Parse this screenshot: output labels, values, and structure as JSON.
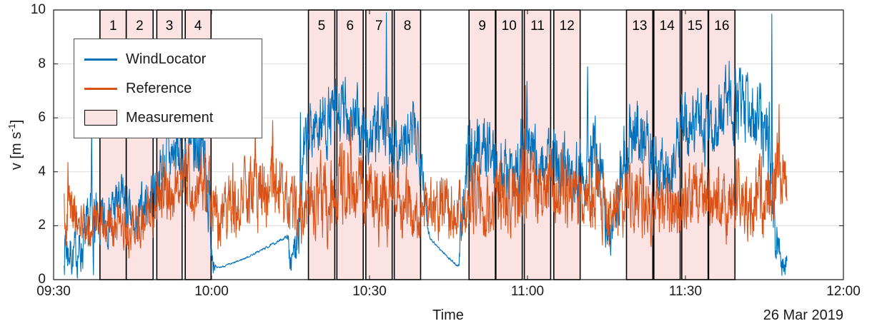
{
  "figure": {
    "ylabel_pre": "v [m s",
    "ylabel_sup": "-1",
    "ylabel_post": "]",
    "xlabel": "Time",
    "date_label": "26 Mar 2019"
  },
  "chart_data": {
    "type": "line",
    "title": "",
    "xlabel": "Time",
    "ylabel": "v [m s^-1]",
    "grid": true,
    "x_axis": {
      "start_label": "09:30",
      "end_label": "12:00",
      "tick_labels": [
        "09:30",
        "10:00",
        "10:30",
        "11:00",
        "11:30",
        "12:00"
      ],
      "tick_minutes": [
        0,
        30,
        60,
        90,
        120,
        150
      ],
      "range_minutes": [
        0,
        150
      ],
      "date": "26 Mar 2019"
    },
    "y_axis": {
      "ticks": [
        0,
        2,
        4,
        6,
        8,
        10
      ],
      "lim": [
        0,
        10
      ],
      "label": "v [m s^-1]"
    },
    "legend": {
      "position": "top-left",
      "entries": [
        {
          "label": "WindLocator",
          "type": "line",
          "color": "#0072BD"
        },
        {
          "label": "Reference",
          "type": "line",
          "color": "#D95319"
        },
        {
          "label": "Measurement",
          "type": "patch",
          "color": "#FBE3E3",
          "border": "#000000"
        }
      ]
    },
    "colors": {
      "windlocator": "#0072BD",
      "reference": "#D95319",
      "measurement_fill": "#FBE3E3",
      "measurement_border": "#000000",
      "grid": "#DCDCDC",
      "axis": "#1a1a1a"
    },
    "measurements": [
      {
        "id": "1",
        "start_min": 8.8,
        "end_min": 13.8
      },
      {
        "id": "2",
        "start_min": 13.8,
        "end_min": 18.9
      },
      {
        "id": "3",
        "start_min": 19.6,
        "end_min": 24.4
      },
      {
        "id": "4",
        "start_min": 25.0,
        "end_min": 29.9
      },
      {
        "id": "5",
        "start_min": 48.4,
        "end_min": 53.4
      },
      {
        "id": "6",
        "start_min": 53.8,
        "end_min": 58.8
      },
      {
        "id": "7",
        "start_min": 59.3,
        "end_min": 64.3
      },
      {
        "id": "8",
        "start_min": 64.7,
        "end_min": 69.7
      },
      {
        "id": "9",
        "start_min": 78.9,
        "end_min": 83.9
      },
      {
        "id": "10",
        "start_min": 84.0,
        "end_min": 89.0
      },
      {
        "id": "11",
        "start_min": 89.4,
        "end_min": 94.4
      },
      {
        "id": "12",
        "start_min": 95.0,
        "end_min": 100.0
      },
      {
        "id": "13",
        "start_min": 108.8,
        "end_min": 113.8
      },
      {
        "id": "14",
        "start_min": 114.0,
        "end_min": 119.0
      },
      {
        "id": "15",
        "start_min": 119.3,
        "end_min": 124.3
      },
      {
        "id": "16",
        "start_min": 124.4,
        "end_min": 129.4
      }
    ],
    "series": [
      {
        "name": "WindLocator",
        "color": "#0072BD",
        "anchors": [
          [
            2,
            1.3,
            0.9
          ],
          [
            3.5,
            0.9,
            0.7
          ],
          [
            5,
            1.1,
            0.8
          ],
          [
            6.5,
            1.6,
            1.0
          ],
          [
            7.6,
            2.2,
            1.4
          ],
          [
            8.5,
            1.8,
            0.8
          ],
          [
            10,
            2.2,
            0.8
          ],
          [
            12,
            2.8,
            0.9
          ],
          [
            13.5,
            2.9,
            0.9
          ],
          [
            14.5,
            2.2,
            0.8
          ],
          [
            15.5,
            1.8,
            0.6
          ],
          [
            17,
            2.7,
            0.9
          ],
          [
            19,
            3.3,
            1.0
          ],
          [
            21,
            4.3,
            1.1
          ],
          [
            23,
            4.7,
            1.1
          ],
          [
            25,
            4.4,
            1.0
          ],
          [
            26.5,
            4.6,
            1.1
          ],
          [
            28,
            5.1,
            1.2
          ],
          [
            29,
            4.0,
            1.5
          ],
          [
            30,
            1.5,
            0.9
          ],
          [
            30.6,
            0.5,
            0.15
          ],
          [
            31,
            0.42,
            0.03
          ],
          [
            34,
            0.6,
            0.03
          ],
          [
            37,
            0.85,
            0.03
          ],
          [
            40,
            1.15,
            0.04
          ],
          [
            43,
            1.45,
            0.04
          ],
          [
            44.3,
            1.6,
            0.05
          ],
          [
            44.8,
            1.1,
            0.7
          ],
          [
            45.4,
            0.6,
            0.35
          ],
          [
            46.3,
            2.2,
            1.2
          ],
          [
            47.3,
            4.0,
            1.3
          ],
          [
            48.5,
            5.3,
            1.1
          ],
          [
            50,
            5.8,
            1.0
          ],
          [
            52,
            5.9,
            1.1
          ],
          [
            54,
            6.0,
            1.2
          ],
          [
            56,
            6.2,
            1.2
          ],
          [
            58,
            5.6,
            1.1
          ],
          [
            60,
            5.2,
            1.0
          ],
          [
            62,
            5.5,
            1.1
          ],
          [
            63.5,
            5.6,
            1.2
          ],
          [
            65,
            4.9,
            1.0
          ],
          [
            67,
            5.0,
            1.1
          ],
          [
            68.5,
            5.3,
            1.2
          ],
          [
            69.8,
            5.2,
            1.2
          ],
          [
            70.8,
            2.2,
            0.4
          ],
          [
            71.5,
            1.55,
            0.04
          ],
          [
            73.5,
            1.1,
            0.04
          ],
          [
            75.5,
            0.72,
            0.04
          ],
          [
            76.8,
            0.5,
            0.05
          ],
          [
            77.4,
            1.6,
            1.1
          ],
          [
            78.6,
            4.2,
            1.3
          ],
          [
            80.5,
            5.0,
            1.1
          ],
          [
            82.5,
            4.9,
            1.2
          ],
          [
            84.5,
            4.2,
            1.1
          ],
          [
            86.5,
            4.0,
            1.0
          ],
          [
            88.5,
            4.4,
            1.3
          ],
          [
            90,
            5.2,
            1.4
          ],
          [
            91.5,
            4.4,
            1.2
          ],
          [
            93.5,
            4.2,
            1.0
          ],
          [
            95.5,
            4.5,
            1.1
          ],
          [
            97.5,
            4.3,
            1.0
          ],
          [
            99.5,
            4.1,
            1.1
          ],
          [
            101.5,
            4.7,
            1.3
          ],
          [
            103.5,
            4.1,
            1.2
          ],
          [
            105,
            2.6,
            1.1
          ],
          [
            106,
            1.5,
            0.7
          ],
          [
            107.3,
            3.6,
            1.2
          ],
          [
            109,
            5.0,
            1.2
          ],
          [
            111,
            5.6,
            1.2
          ],
          [
            113,
            5.2,
            1.1
          ],
          [
            115,
            4.4,
            1.2
          ],
          [
            116.2,
            3.6,
            1.0
          ],
          [
            117.5,
            4.2,
            1.1
          ],
          [
            119,
            5.4,
            1.2
          ],
          [
            121,
            5.8,
            1.2
          ],
          [
            123,
            5.6,
            1.1
          ],
          [
            125,
            5.5,
            1.2
          ],
          [
            127,
            6.4,
            1.2
          ],
          [
            129,
            6.3,
            1.2
          ],
          [
            131,
            6.3,
            1.1
          ],
          [
            133,
            6.2,
            1.0
          ],
          [
            134.8,
            5.9,
            1.2
          ],
          [
            136.2,
            4.8,
            1.8
          ],
          [
            137.2,
            1.6,
            1.0
          ],
          [
            138.3,
            0.8,
            0.5
          ],
          [
            139.3,
            0.5,
            0.3
          ]
        ],
        "spikes": [
          [
            7.2,
            5.72
          ],
          [
            27.9,
            6.55
          ],
          [
            46.9,
            6.2
          ],
          [
            63.2,
            9.9
          ],
          [
            89.9,
            7.35
          ],
          [
            101.4,
            7.9
          ],
          [
            105.8,
            0.9
          ],
          [
            128.3,
            8.1
          ],
          [
            136.4,
            9.85
          ]
        ]
      },
      {
        "name": "Reference",
        "color": "#D95319",
        "anchors": [
          [
            2,
            2.6,
            0.9
          ],
          [
            4,
            2.3,
            0.8
          ],
          [
            6,
            2.0,
            0.8
          ],
          [
            8,
            1.9,
            0.7
          ],
          [
            10,
            2.1,
            0.7
          ],
          [
            12,
            1.9,
            0.8
          ],
          [
            14,
            1.6,
            0.7
          ],
          [
            16,
            2.2,
            0.8
          ],
          [
            18,
            2.6,
            0.9
          ],
          [
            20,
            3.1,
            1.0
          ],
          [
            22,
            3.5,
            1.1
          ],
          [
            24,
            3.8,
            1.1
          ],
          [
            26,
            3.5,
            1.0
          ],
          [
            28,
            3.8,
            1.1
          ],
          [
            30,
            3.1,
            1.2
          ],
          [
            31.2,
            2.0,
            1.0
          ],
          [
            33,
            2.6,
            1.2
          ],
          [
            35,
            3.0,
            1.3
          ],
          [
            37,
            3.2,
            1.3
          ],
          [
            39,
            3.4,
            1.3
          ],
          [
            41,
            3.2,
            1.3
          ],
          [
            43,
            3.2,
            1.2
          ],
          [
            44.8,
            2.4,
            1.0
          ],
          [
            46,
            2.6,
            1.2
          ],
          [
            48,
            3.0,
            1.2
          ],
          [
            50,
            3.2,
            1.2
          ],
          [
            52,
            3.0,
            1.3
          ],
          [
            54,
            3.4,
            1.3
          ],
          [
            56,
            3.9,
            1.4
          ],
          [
            58,
            3.5,
            1.3
          ],
          [
            60,
            3.2,
            1.2
          ],
          [
            62,
            3.0,
            1.3
          ],
          [
            64,
            2.8,
            1.2
          ],
          [
            66,
            3.0,
            1.2
          ],
          [
            68,
            2.8,
            1.1
          ],
          [
            70,
            2.6,
            1.0
          ],
          [
            72,
            2.8,
            1.1
          ],
          [
            74,
            2.6,
            1.0
          ],
          [
            76,
            2.8,
            1.1
          ],
          [
            78,
            3.0,
            1.2
          ],
          [
            80,
            3.0,
            1.1
          ],
          [
            82,
            2.8,
            1.1
          ],
          [
            84,
            3.0,
            1.2
          ],
          [
            86,
            2.8,
            1.1
          ],
          [
            88,
            3.3,
            1.3
          ],
          [
            90,
            3.6,
            1.4
          ],
          [
            92,
            3.2,
            1.2
          ],
          [
            94,
            3.5,
            1.3
          ],
          [
            96,
            3.4,
            1.2
          ],
          [
            98,
            3.2,
            1.2
          ],
          [
            100,
            3.0,
            1.2
          ],
          [
            102,
            3.2,
            1.2
          ],
          [
            104,
            2.8,
            1.1
          ],
          [
            106,
            2.5,
            1.0
          ],
          [
            108,
            2.8,
            1.1
          ],
          [
            110,
            3.0,
            1.1
          ],
          [
            112,
            3.0,
            1.2
          ],
          [
            114,
            2.8,
            1.1
          ],
          [
            116,
            2.6,
            1.0
          ],
          [
            118,
            2.8,
            1.1
          ],
          [
            120,
            3.0,
            1.2
          ],
          [
            122,
            3.2,
            1.2
          ],
          [
            124,
            3.0,
            1.1
          ],
          [
            126,
            3.2,
            1.2
          ],
          [
            128,
            3.0,
            1.2
          ],
          [
            130,
            3.2,
            1.2
          ],
          [
            132,
            3.0,
            1.1
          ],
          [
            134,
            3.2,
            1.2
          ],
          [
            136,
            3.3,
            1.3
          ],
          [
            137.6,
            3.8,
            1.6
          ],
          [
            139.3,
            3.4,
            0.8
          ]
        ],
        "spikes": [
          [
            2.7,
            4.35
          ],
          [
            14.3,
            0.8
          ],
          [
            38.3,
            5.85
          ],
          [
            41.6,
            5.9
          ],
          [
            56.4,
            6.05
          ],
          [
            89.6,
            7.2
          ],
          [
            137.8,
            6.5
          ]
        ]
      }
    ],
    "noise": {
      "dt_min": 0.06,
      "seed": 7
    }
  }
}
